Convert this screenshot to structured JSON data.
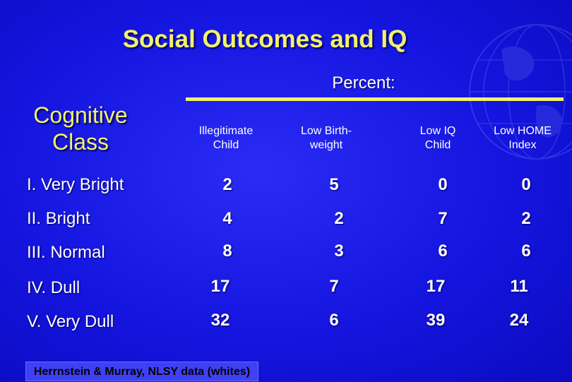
{
  "title": "Social Outcomes and IQ",
  "header": {
    "percent_label": "Percent:",
    "row_header_line1": "Cognitive",
    "row_header_line2": "Class"
  },
  "columns": [
    {
      "line1": "Illegitimate",
      "line2": "Child"
    },
    {
      "line1": "Low Birth-",
      "line2": "weight"
    },
    {
      "line1": "Low IQ",
      "line2": "Child"
    },
    {
      "line1": "Low HOME",
      "line2": "Index"
    }
  ],
  "rows": [
    {
      "label": "I. Very Bright",
      "values": [
        "2",
        "5",
        "0",
        "0"
      ]
    },
    {
      "label": "II. Bright",
      "values": [
        "4",
        "2",
        "7",
        "2"
      ]
    },
    {
      "label": "III. Normal",
      "values": [
        "8",
        "3",
        "6",
        "6"
      ]
    },
    {
      "label": "IV. Dull",
      "values": [
        "17",
        "7",
        "17",
        "11"
      ]
    },
    {
      "label": "V. Very Dull",
      "values": [
        "32",
        "6",
        "39",
        "24"
      ]
    }
  ],
  "source": "Herrnstein & Murray, NLSY data (whites)",
  "colors": {
    "background": "#1515e0",
    "title": "#f2f26a",
    "text": "#ffffff"
  }
}
